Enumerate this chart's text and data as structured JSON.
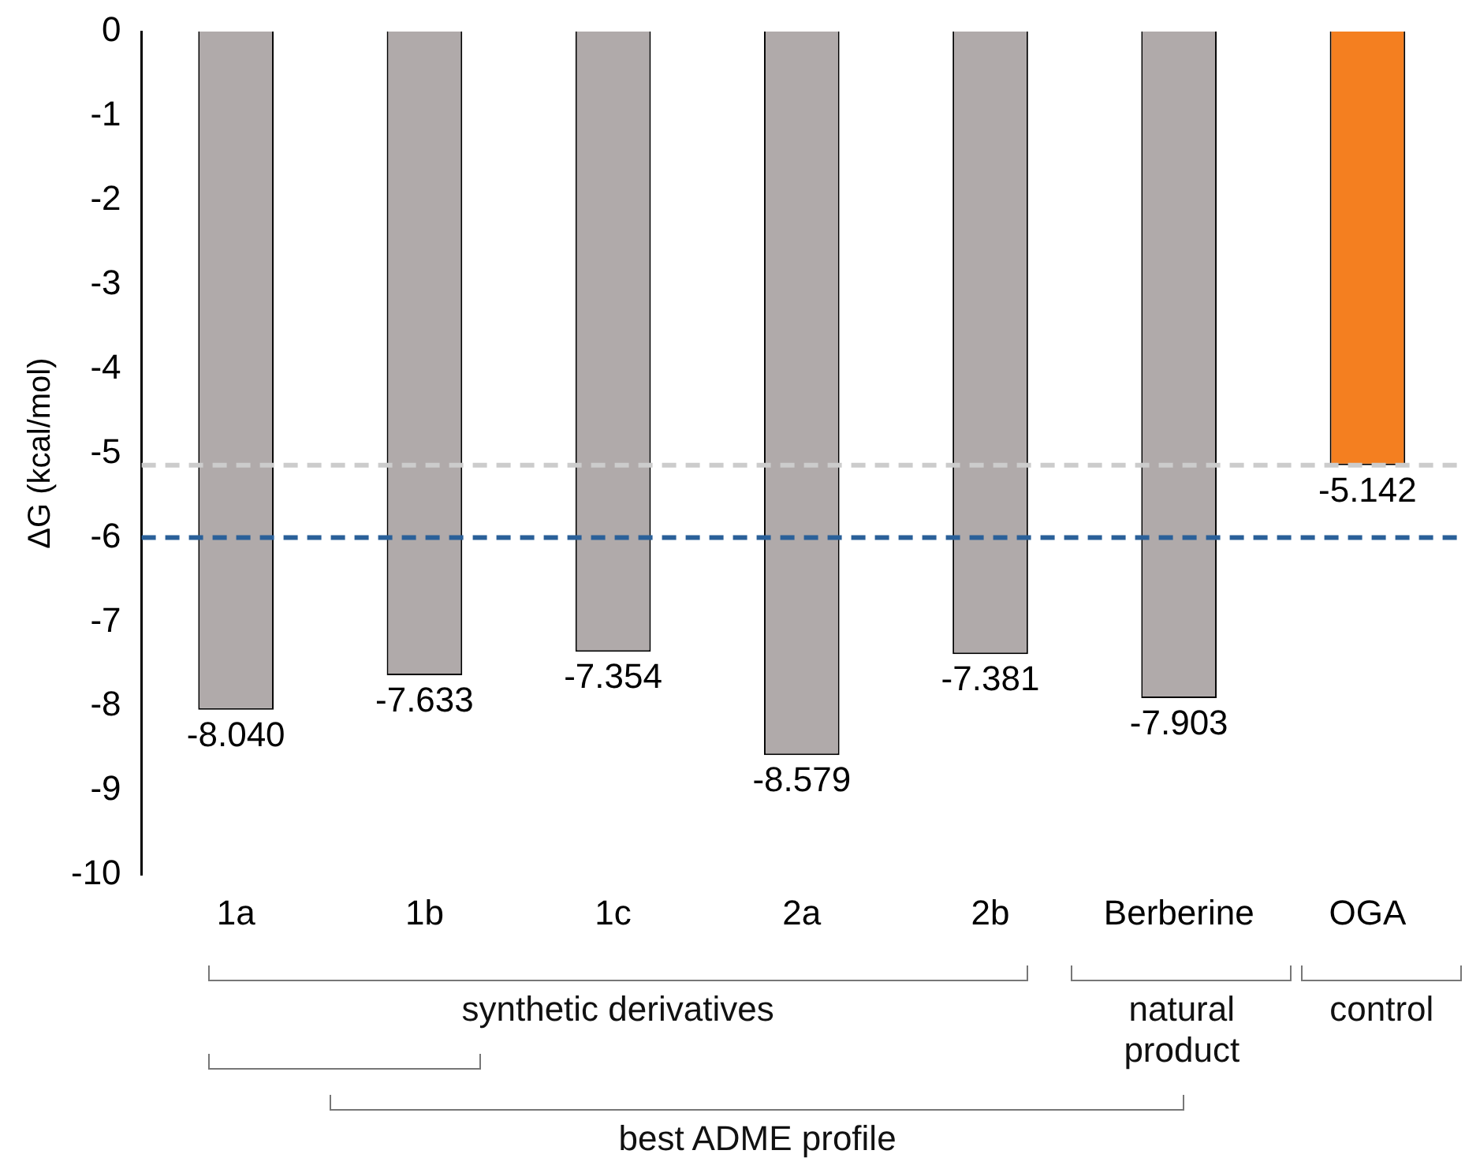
{
  "chart_data": {
    "type": "bar",
    "ylabel": "ΔG (kcal/mol)",
    "categories": [
      "1a",
      "1b",
      "1c",
      "2a",
      "2b",
      "Berberine",
      "OGA"
    ],
    "values": [
      -8.04,
      -7.633,
      -7.354,
      -8.579,
      -7.381,
      -7.903,
      -5.142
    ],
    "colors": [
      "#b0aaaa",
      "#b0aaaa",
      "#b0aaaa",
      "#b0aaaa",
      "#b0aaaa",
      "#b0aaaa",
      "#f47f20"
    ],
    "value_labels": [
      "-8.040",
      "-7.633",
      "-7.354",
      "-8.579",
      "-7.381",
      "-7.903",
      "-5.142"
    ],
    "ylim": [
      -10,
      0
    ],
    "yticks": [
      -10,
      -9,
      -8,
      -7,
      -6,
      -5,
      -4,
      -3,
      -2,
      -1,
      0
    ],
    "ref_lines": [
      {
        "axis": "y",
        "value": -5.142,
        "color": "#cccccc",
        "line_style": "dashed"
      },
      {
        "axis": "y",
        "value": -6.0,
        "color": "#2a6099",
        "line_style": "dashed"
      }
    ],
    "annotations": [
      "synthetic derivatives",
      "natural product",
      "control",
      "best ADME profile"
    ],
    "grid": false,
    "legend": false
  }
}
